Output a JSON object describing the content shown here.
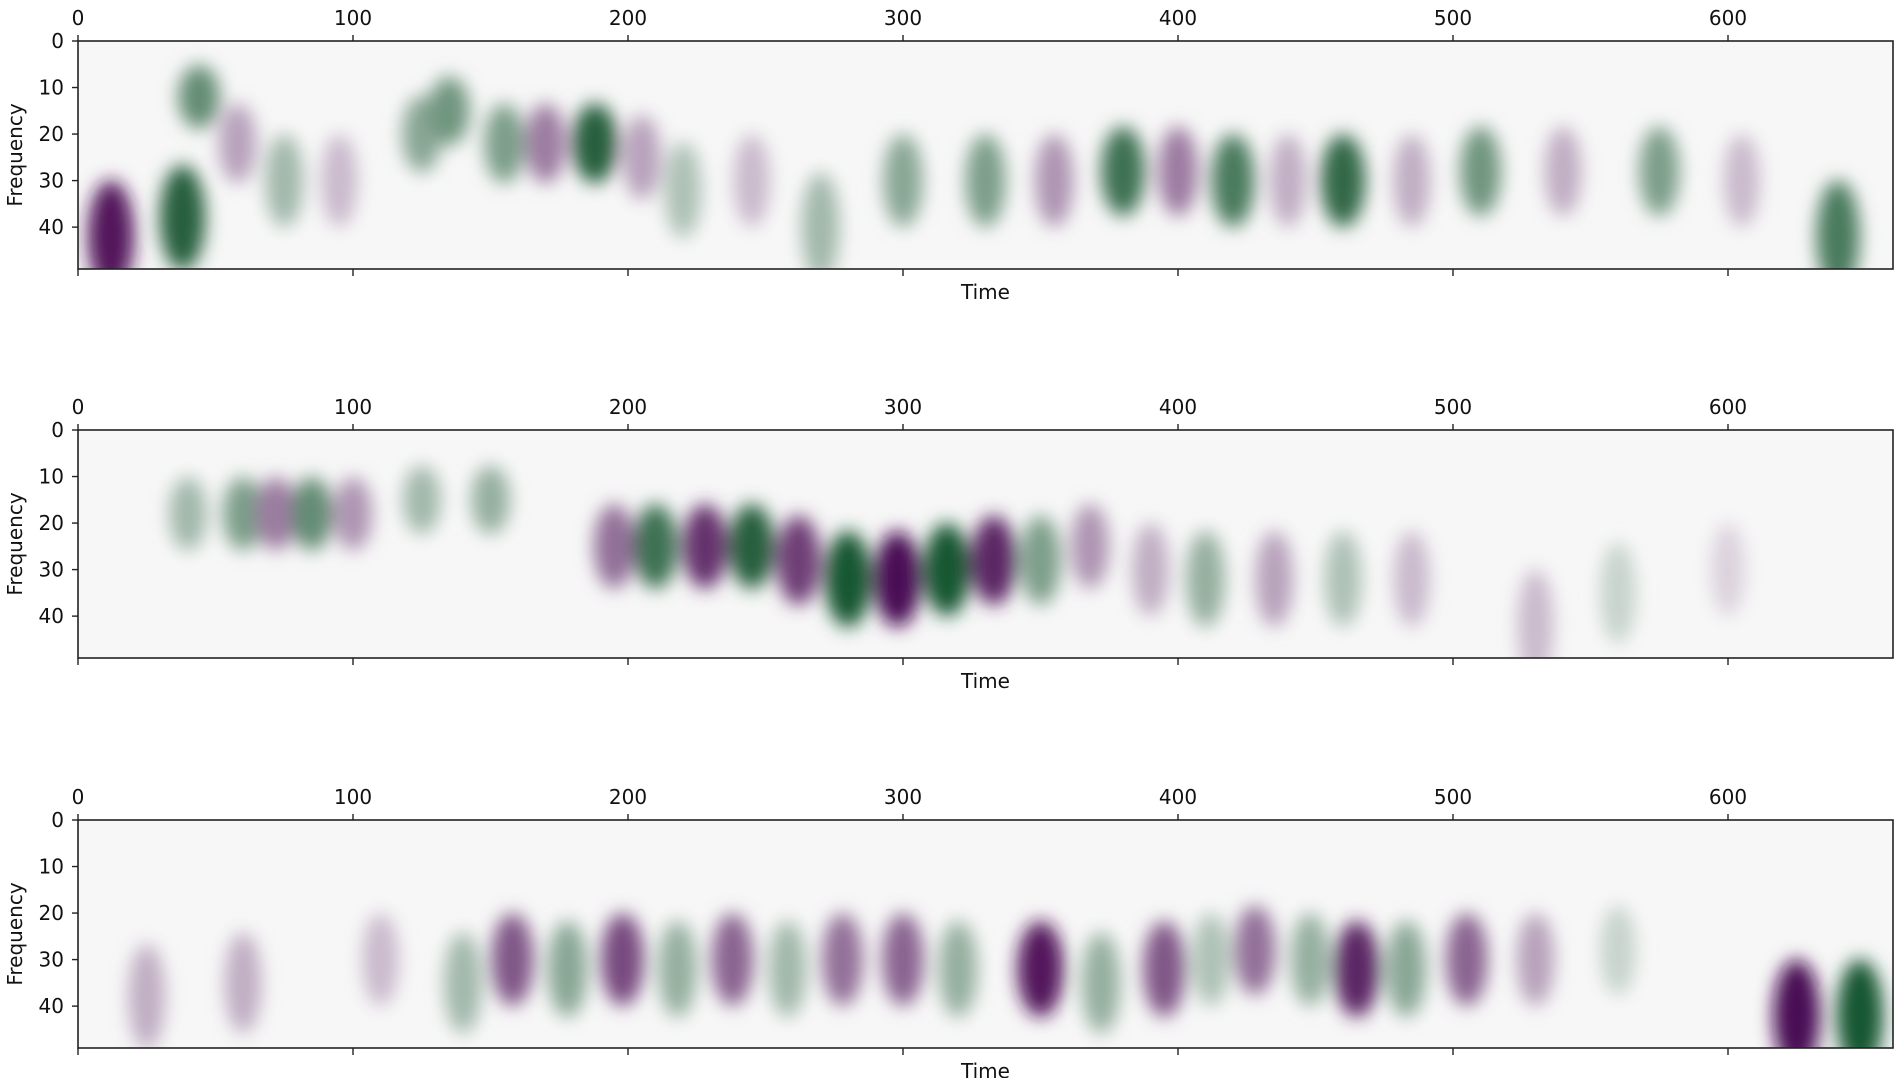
{
  "chart_data": [
    {
      "type": "heatmap",
      "panel": 1,
      "xlabel": "Time",
      "ylabel": "Frequency",
      "xlim": [
        0,
        660
      ],
      "ylim": [
        0,
        49
      ],
      "x_ticks": [
        "0",
        "100",
        "200",
        "300",
        "400",
        "500",
        "600"
      ],
      "y_ticks": [
        "0",
        "10",
        "20",
        "30",
        "40"
      ],
      "x_tick_position": "top",
      "colormap": "PRGn",
      "color_low": "#40004b",
      "color_mid": "#f7f7f7",
      "color_high": "#00441b",
      "blobs": [
        {
          "t": 12,
          "f": 42,
          "v": -0.9
        },
        {
          "t": 38,
          "f": 38,
          "v": 0.85
        },
        {
          "t": 44,
          "f": 12,
          "v": 0.6
        },
        {
          "t": 58,
          "f": 22,
          "v": -0.35
        },
        {
          "t": 75,
          "f": 30,
          "v": 0.35
        },
        {
          "t": 95,
          "f": 30,
          "v": -0.25
        },
        {
          "t": 125,
          "f": 20,
          "v": 0.45
        },
        {
          "t": 135,
          "f": 15,
          "v": 0.55
        },
        {
          "t": 155,
          "f": 22,
          "v": 0.5
        },
        {
          "t": 170,
          "f": 22,
          "v": -0.5
        },
        {
          "t": 188,
          "f": 22,
          "v": 0.85
        },
        {
          "t": 205,
          "f": 25,
          "v": -0.35
        },
        {
          "t": 220,
          "f": 32,
          "v": 0.3
        },
        {
          "t": 245,
          "f": 30,
          "v": -0.25
        },
        {
          "t": 270,
          "f": 40,
          "v": 0.35
        },
        {
          "t": 300,
          "f": 30,
          "v": 0.45
        },
        {
          "t": 330,
          "f": 30,
          "v": 0.5
        },
        {
          "t": 355,
          "f": 30,
          "v": -0.4
        },
        {
          "t": 380,
          "f": 28,
          "v": 0.75
        },
        {
          "t": 400,
          "f": 28,
          "v": -0.5
        },
        {
          "t": 420,
          "f": 30,
          "v": 0.7
        },
        {
          "t": 440,
          "f": 30,
          "v": -0.3
        },
        {
          "t": 460,
          "f": 30,
          "v": 0.8
        },
        {
          "t": 485,
          "f": 30,
          "v": -0.3
        },
        {
          "t": 510,
          "f": 28,
          "v": 0.55
        },
        {
          "t": 540,
          "f": 28,
          "v": -0.3
        },
        {
          "t": 575,
          "f": 28,
          "v": 0.5
        },
        {
          "t": 605,
          "f": 30,
          "v": -0.25
        },
        {
          "t": 640,
          "f": 42,
          "v": 0.7
        }
      ]
    },
    {
      "type": "heatmap",
      "panel": 2,
      "xlabel": "Time",
      "ylabel": "Frequency",
      "xlim": [
        0,
        660
      ],
      "ylim": [
        0,
        49
      ],
      "x_ticks": [
        "0",
        "100",
        "200",
        "300",
        "400",
        "500",
        "600"
      ],
      "y_ticks": [
        "0",
        "10",
        "20",
        "30",
        "40"
      ],
      "x_tick_position": "top",
      "colormap": "PRGn",
      "color_low": "#40004b",
      "color_mid": "#f7f7f7",
      "color_high": "#00441b",
      "blobs": [
        {
          "t": 40,
          "f": 18,
          "v": 0.35
        },
        {
          "t": 60,
          "f": 18,
          "v": 0.5
        },
        {
          "t": 72,
          "f": 18,
          "v": -0.5
        },
        {
          "t": 85,
          "f": 18,
          "v": 0.6
        },
        {
          "t": 100,
          "f": 18,
          "v": -0.4
        },
        {
          "t": 125,
          "f": 15,
          "v": 0.35
        },
        {
          "t": 150,
          "f": 15,
          "v": 0.4
        },
        {
          "t": 195,
          "f": 25,
          "v": -0.55
        },
        {
          "t": 210,
          "f": 25,
          "v": 0.75
        },
        {
          "t": 228,
          "f": 25,
          "v": -0.8
        },
        {
          "t": 245,
          "f": 25,
          "v": 0.85
        },
        {
          "t": 262,
          "f": 28,
          "v": -0.75
        },
        {
          "t": 280,
          "f": 32,
          "v": 0.9
        },
        {
          "t": 298,
          "f": 32,
          "v": -0.95
        },
        {
          "t": 316,
          "f": 30,
          "v": 0.9
        },
        {
          "t": 333,
          "f": 28,
          "v": -0.85
        },
        {
          "t": 350,
          "f": 28,
          "v": 0.5
        },
        {
          "t": 368,
          "f": 25,
          "v": -0.4
        },
        {
          "t": 390,
          "f": 30,
          "v": -0.3
        },
        {
          "t": 410,
          "f": 32,
          "v": 0.4
        },
        {
          "t": 435,
          "f": 32,
          "v": -0.35
        },
        {
          "t": 460,
          "f": 32,
          "v": 0.3
        },
        {
          "t": 485,
          "f": 32,
          "v": -0.25
        },
        {
          "t": 530,
          "f": 42,
          "v": -0.25
        },
        {
          "t": 560,
          "f": 35,
          "v": 0.2
        },
        {
          "t": 600,
          "f": 30,
          "v": -0.15
        }
      ]
    },
    {
      "type": "heatmap",
      "panel": 3,
      "xlabel": "Time",
      "ylabel": "Frequency",
      "xlim": [
        0,
        660
      ],
      "ylim": [
        0,
        49
      ],
      "x_ticks": [
        "0",
        "100",
        "200",
        "300",
        "400",
        "500",
        "600"
      ],
      "y_ticks": [
        "0",
        "10",
        "20",
        "30",
        "40"
      ],
      "x_tick_position": "top",
      "colormap": "PRGn",
      "color_low": "#40004b",
      "color_mid": "#f7f7f7",
      "color_high": "#00441b",
      "blobs": [
        {
          "t": 25,
          "f": 38,
          "v": -0.3
        },
        {
          "t": 60,
          "f": 35,
          "v": -0.3
        },
        {
          "t": 110,
          "f": 30,
          "v": -0.25
        },
        {
          "t": 140,
          "f": 35,
          "v": 0.35
        },
        {
          "t": 158,
          "f": 30,
          "v": -0.65
        },
        {
          "t": 178,
          "f": 32,
          "v": 0.45
        },
        {
          "t": 198,
          "f": 30,
          "v": -0.7
        },
        {
          "t": 218,
          "f": 32,
          "v": 0.4
        },
        {
          "t": 238,
          "f": 30,
          "v": -0.6
        },
        {
          "t": 258,
          "f": 32,
          "v": 0.35
        },
        {
          "t": 278,
          "f": 30,
          "v": -0.55
        },
        {
          "t": 300,
          "f": 30,
          "v": -0.6
        },
        {
          "t": 320,
          "f": 32,
          "v": 0.4
        },
        {
          "t": 350,
          "f": 32,
          "v": -0.9
        },
        {
          "t": 372,
          "f": 35,
          "v": 0.4
        },
        {
          "t": 395,
          "f": 32,
          "v": -0.65
        },
        {
          "t": 412,
          "f": 30,
          "v": 0.3
        },
        {
          "t": 428,
          "f": 28,
          "v": -0.55
        },
        {
          "t": 448,
          "f": 30,
          "v": 0.4
        },
        {
          "t": 465,
          "f": 32,
          "v": -0.85
        },
        {
          "t": 483,
          "f": 32,
          "v": 0.45
        },
        {
          "t": 505,
          "f": 30,
          "v": -0.6
        },
        {
          "t": 530,
          "f": 30,
          "v": -0.35
        },
        {
          "t": 560,
          "f": 28,
          "v": 0.2
        },
        {
          "t": 625,
          "f": 42,
          "v": -0.95
        },
        {
          "t": 648,
          "f": 42,
          "v": 0.9
        }
      ]
    }
  ]
}
